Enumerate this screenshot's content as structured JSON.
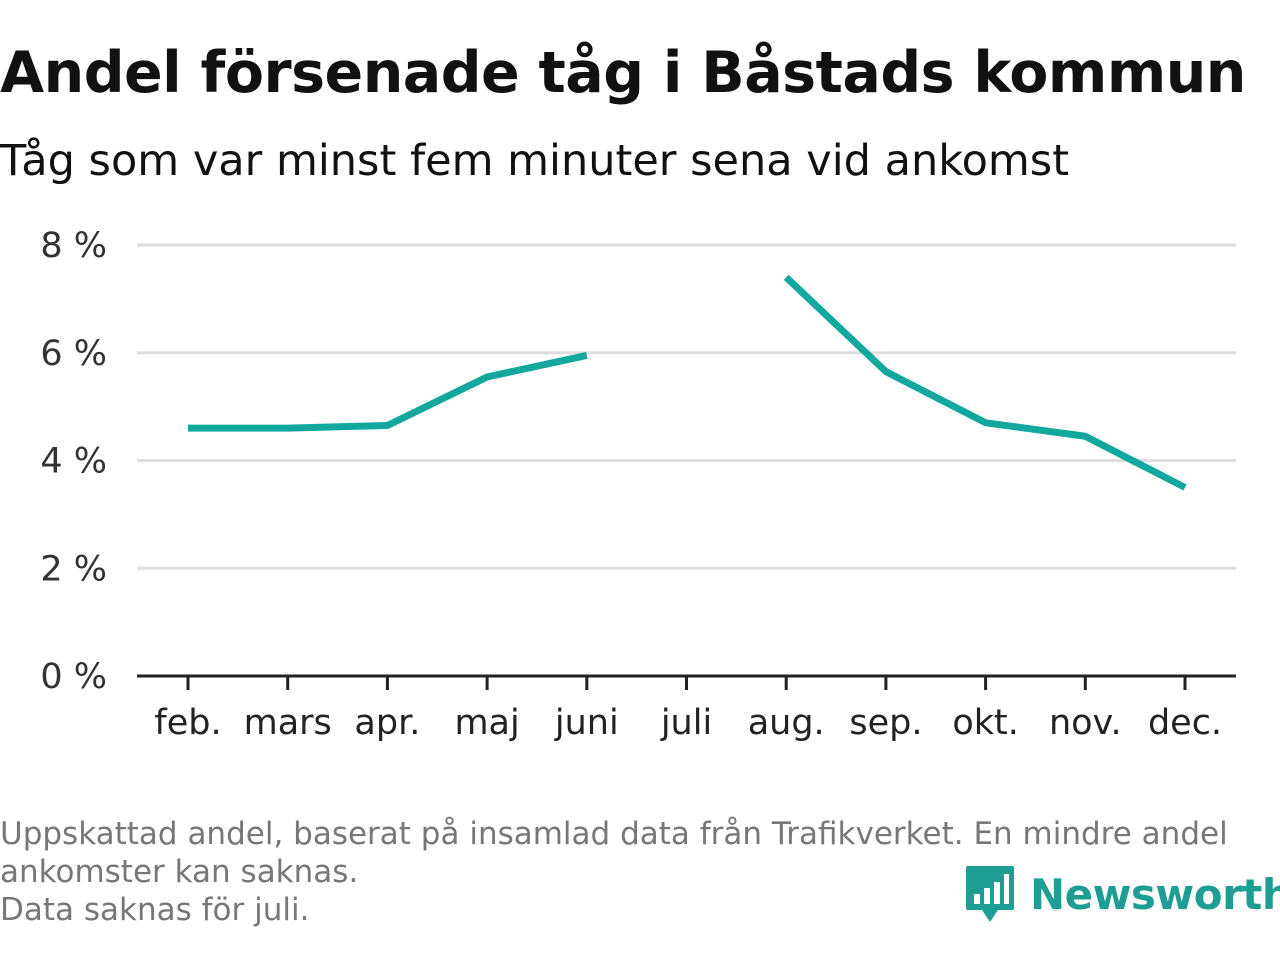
{
  "title": "Andel försenade tåg i Båstads kommun",
  "subtitle": "Tåg som var minst fem minuter sena vid ankomst",
  "notes": [
    "Uppskattad andel, baserat på insamlad data från Trafikverket. En mindre andel ankomster kan saknas.",
    "Data saknas för juli."
  ],
  "logo": {
    "text": "Newsworthy",
    "icon": "newsworthy-chart-icon",
    "color": "#1e9e93"
  },
  "colors": {
    "line": "#12a89d",
    "grid": "#dddddd",
    "axis": "#222222"
  },
  "chart_data": {
    "type": "line",
    "categories": [
      "feb.",
      "mars",
      "apr.",
      "maj",
      "juni",
      "juli",
      "aug.",
      "sep.",
      "okt.",
      "nov.",
      "dec."
    ],
    "series": [
      {
        "values": [
          4.6,
          4.6,
          4.65,
          5.55,
          5.95,
          null,
          7.4,
          5.65,
          4.7,
          4.45,
          3.5
        ]
      }
    ],
    "yticks": [
      "0 %",
      "2 %",
      "4 %",
      "6 %",
      "8 %"
    ],
    "ylim": [
      0,
      8
    ],
    "grid": true,
    "xlabel": "",
    "ylabel": ""
  }
}
